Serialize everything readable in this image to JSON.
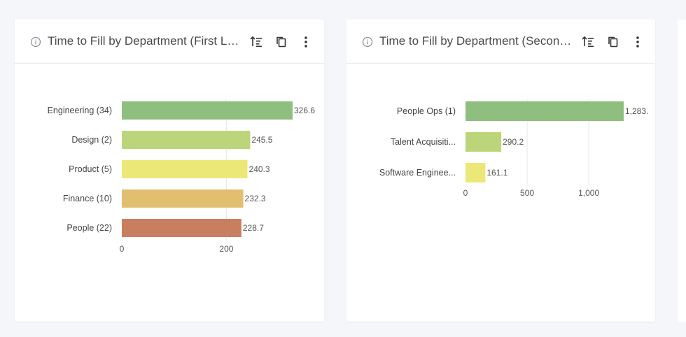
{
  "cards": [
    {
      "title": "Time to Fill by Department (First Level)"
    },
    {
      "title": "Time to Fill by Department (Second Level)"
    }
  ],
  "icons": {
    "info": "info-icon",
    "sort": "sort-descending-icon",
    "copy": "copy-icon",
    "more": "more-vertical-icon"
  },
  "chart_data": [
    {
      "type": "bar",
      "orientation": "horizontal",
      "categories": [
        "Engineering (34)",
        "Design (2)",
        "Product (5)",
        "Finance (10)",
        "People (22)"
      ],
      "values": [
        326.6,
        245.5,
        240.3,
        232.3,
        228.7
      ],
      "value_labels": [
        "326.6",
        "245.5",
        "240.3",
        "232.3",
        "228.7"
      ],
      "colors": [
        "#8fbf7f",
        "#bdd57a",
        "#ece878",
        "#e2bf70",
        "#c97f5f"
      ],
      "x_ticks": [
        0,
        200
      ],
      "x_tick_labels": [
        "0",
        "200"
      ],
      "xlim": [
        0,
        326.6
      ],
      "grid": true
    },
    {
      "type": "bar",
      "orientation": "horizontal",
      "categories": [
        "People Ops (1)",
        "Talent Acquisiti...",
        "Software Enginee..."
      ],
      "values": [
        1283,
        290.2,
        161.1
      ],
      "value_labels": [
        "1,283.",
        "290.2",
        "161.1"
      ],
      "colors": [
        "#8fbf7f",
        "#bdd57a",
        "#ece878"
      ],
      "x_ticks": [
        0,
        500,
        1000
      ],
      "x_tick_labels": [
        "0",
        "500",
        "1,000"
      ],
      "xlim": [
        0,
        1283
      ],
      "grid": true
    }
  ]
}
